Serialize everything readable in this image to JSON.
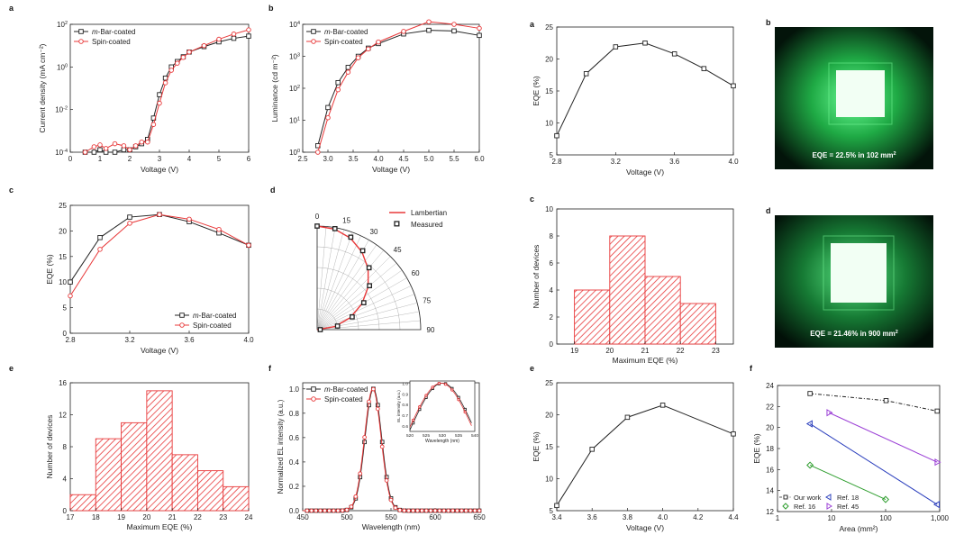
{
  "colors": {
    "black_series": "#222222",
    "red_series": "#e8393a",
    "hatch_red": "#e8393a",
    "bg": "#ffffff",
    "photo_green": "#3fe870",
    "photo_dark": "#0a1a0c",
    "scatter_blue": "#2b3fbd",
    "scatter_green": "#2f9e2f",
    "scatter_purple": "#9b3fd6"
  },
  "chart_data": [
    {
      "id": "panel-a-left",
      "letter": "a",
      "type": "line",
      "xlabel": "Voltage (V)",
      "ylabel": "Current density (mA cm⁻²)",
      "xlim": [
        0,
        6
      ],
      "ylim_log": [
        -4,
        2
      ],
      "y_scale": "log",
      "xticks": [
        "0",
        "1",
        "2",
        "3",
        "4",
        "5",
        "6"
      ],
      "yticks": [
        {
          "v": -4,
          "base": "10",
          "exp": "-4"
        },
        {
          "v": -2,
          "base": "10",
          "exp": "-2"
        },
        {
          "v": 0,
          "base": "10",
          "exp": "0"
        },
        {
          "v": 2,
          "base": "10",
          "exp": "2"
        }
      ],
      "legend": {
        "position": "top-left",
        "entries": [
          "m-Bar-coated",
          "Spin-coated"
        ]
      },
      "series": [
        {
          "name": "m-Bar-coated",
          "color": "black",
          "marker": "square",
          "x": [
            0.5,
            0.8,
            1.0,
            1.2,
            1.5,
            1.8,
            2.0,
            2.2,
            2.4,
            2.6,
            2.8,
            3.0,
            3.2,
            3.4,
            3.6,
            3.8,
            4.0,
            4.5,
            5.0,
            5.5,
            6.0
          ],
          "y": [
            0.0001,
            0.0001,
            0.00013,
            0.0001,
            0.0001,
            0.00013,
            0.00013,
            0.00018,
            0.00025,
            0.0004,
            0.004,
            0.05,
            0.3,
            1.0,
            1.8,
            3.0,
            5.0,
            9.0,
            15.0,
            22.0,
            28.0
          ]
        },
        {
          "name": "Spin-coated",
          "color": "red",
          "marker": "circle",
          "x": [
            0.5,
            0.8,
            1.0,
            1.2,
            1.5,
            1.8,
            2.0,
            2.2,
            2.4,
            2.6,
            2.8,
            3.0,
            3.2,
            3.4,
            3.6,
            3.8,
            4.0,
            4.5,
            5.0,
            5.5,
            6.0
          ],
          "y": [
            0.0001,
            0.00018,
            0.00022,
            0.00015,
            0.00025,
            0.0002,
            0.00013,
            0.0002,
            0.0003,
            0.0003,
            0.002,
            0.02,
            0.18,
            0.7,
            1.5,
            2.8,
            5.0,
            10.0,
            20.0,
            35.0,
            55.0
          ]
        }
      ]
    },
    {
      "id": "panel-b-left",
      "letter": "b",
      "type": "line",
      "xlabel": "Voltage (V)",
      "ylabel": "Luminance (cd m⁻²)",
      "xlim": [
        2.5,
        6.0
      ],
      "ylim_log": [
        0,
        4
      ],
      "y_scale": "log",
      "xticks": [
        "2.5",
        "3.0",
        "3.5",
        "4.0",
        "4.5",
        "5.0",
        "5.5",
        "6.0"
      ],
      "yticks": [
        {
          "v": 0,
          "base": "10",
          "exp": "0"
        },
        {
          "v": 1,
          "base": "10",
          "exp": "1"
        },
        {
          "v": 2,
          "base": "10",
          "exp": "2"
        },
        {
          "v": 3,
          "base": "10",
          "exp": "3"
        },
        {
          "v": 4,
          "base": "10",
          "exp": "4"
        }
      ],
      "legend": {
        "position": "top-left",
        "entries": [
          "m-Bar-coated",
          "Spin-coated"
        ]
      },
      "series": [
        {
          "name": "m-Bar-coated",
          "color": "black",
          "marker": "square",
          "x": [
            2.8,
            3.0,
            3.2,
            3.4,
            3.6,
            3.8,
            4.0,
            4.5,
            5.0,
            5.5,
            6.0
          ],
          "y": [
            1.6,
            25,
            150,
            450,
            1000,
            1800,
            2500,
            5000,
            6500,
            6200,
            4500
          ]
        },
        {
          "name": "Spin-coated",
          "color": "red",
          "marker": "circle",
          "x": [
            2.8,
            3.0,
            3.2,
            3.4,
            3.6,
            3.8,
            4.0,
            4.5,
            5.0,
            5.5,
            6.0
          ],
          "y": [
            1.0,
            12,
            90,
            320,
            900,
            1700,
            2800,
            6000,
            12000,
            10000,
            7500
          ]
        }
      ]
    },
    {
      "id": "panel-c-left",
      "letter": "c",
      "type": "line",
      "xlabel": "Voltage (V)",
      "ylabel": "EQE (%)",
      "xlim": [
        2.8,
        4.0
      ],
      "ylim": [
        0,
        25
      ],
      "xticks": [
        "2.8",
        "3.2",
        "3.6",
        "4.0"
      ],
      "yticks": [
        "0",
        "5",
        "10",
        "15",
        "20",
        "25"
      ],
      "legend": {
        "position": "bottom-right",
        "entries": [
          "m-Bar-coated",
          "Spin-coated"
        ]
      },
      "series": [
        {
          "name": "m-Bar-coated",
          "color": "black",
          "marker": "square",
          "x": [
            2.8,
            3.0,
            3.2,
            3.4,
            3.6,
            3.8,
            4.0
          ],
          "y": [
            10.0,
            18.7,
            22.7,
            23.2,
            21.8,
            19.6,
            17.2
          ]
        },
        {
          "name": "Spin-coated",
          "color": "red",
          "marker": "circle",
          "x": [
            2.8,
            3.0,
            3.2,
            3.4,
            3.6,
            3.8,
            4.0
          ],
          "y": [
            7.3,
            16.4,
            21.5,
            23.2,
            22.3,
            20.3,
            17.2
          ]
        }
      ]
    },
    {
      "id": "panel-d-left",
      "letter": "d",
      "type": "polar",
      "angle_labels": [
        "0",
        "15",
        "30",
        "45",
        "60",
        "75",
        "90"
      ],
      "legend": {
        "position": "top-right",
        "entries": [
          "Lambertian",
          "Measured"
        ]
      },
      "series": [
        {
          "name": "Lambertian",
          "color": "red",
          "angles": [
            0,
            10,
            20,
            30,
            40,
            50,
            60,
            70,
            80,
            90
          ],
          "r": [
            1.0,
            0.985,
            0.94,
            0.866,
            0.766,
            0.643,
            0.5,
            0.342,
            0.174,
            0.0
          ]
        },
        {
          "name": "Measured",
          "color": "black",
          "marker": "square",
          "angles": [
            0,
            10,
            20,
            30,
            40,
            50,
            60,
            70,
            80,
            90
          ],
          "r": [
            1.0,
            0.99,
            0.95,
            0.88,
            0.78,
            0.66,
            0.52,
            0.36,
            0.2,
            0.03
          ]
        }
      ]
    },
    {
      "id": "panel-e-left",
      "letter": "e",
      "type": "bar",
      "xlabel": "Maximum EQE (%)",
      "ylabel": "Number of devices",
      "xlim": [
        17,
        24
      ],
      "ylim": [
        0,
        16
      ],
      "xticks": [
        "17",
        "18",
        "19",
        "20",
        "21",
        "22",
        "23",
        "24"
      ],
      "yticks": [
        "0",
        "4",
        "8",
        "12",
        "16"
      ],
      "bins": [
        [
          17,
          18
        ],
        [
          18,
          19
        ],
        [
          19,
          20
        ],
        [
          20,
          21
        ],
        [
          21,
          22
        ],
        [
          22,
          23
        ],
        [
          23,
          24
        ]
      ],
      "values": [
        2,
        9,
        11,
        15,
        7,
        5,
        3
      ]
    },
    {
      "id": "panel-f-left",
      "letter": "f",
      "type": "line",
      "xlabel": "Wavelength (nm)",
      "ylabel": "Normalized EL intensity (a.u.)",
      "xlim": [
        450,
        650
      ],
      "ylim": [
        0,
        1.05
      ],
      "xticks": [
        "450",
        "500",
        "550",
        "600",
        "650"
      ],
      "yticks": [
        "0.0",
        "0.2",
        "0.4",
        "0.6",
        "0.8",
        "1.0"
      ],
      "legend": {
        "position": "top-left",
        "entries": [
          "m-Bar-coated",
          "Spin-coated"
        ]
      },
      "peak_nm": 530,
      "fwhm_nm": 22,
      "inset": {
        "xlabel": "Wavelength (nm)",
        "ylabel": "EL intensity (a.u.)",
        "xticks": [
          "520",
          "525",
          "530",
          "535",
          "540"
        ],
        "yticks": [
          "0.6",
          "0.7",
          "0.8",
          "0.9",
          "1.0"
        ],
        "xlim": [
          520,
          540
        ],
        "ylim": [
          0.55,
          1.02
        ]
      },
      "series": [
        {
          "name": "m-Bar-coated",
          "color": "black",
          "marker": "square"
        },
        {
          "name": "Spin-coated",
          "color": "red",
          "marker": "circle"
        }
      ]
    },
    {
      "id": "panel-a-right",
      "letter": "a",
      "type": "line",
      "xlabel": "Voltage (V)",
      "ylabel": "EQE (%)",
      "xlim": [
        2.8,
        4.0
      ],
      "ylim": [
        5,
        25
      ],
      "xticks": [
        "2.8",
        "3.2",
        "3.6",
        "4.0"
      ],
      "yticks": [
        "5",
        "10",
        "15",
        "20",
        "25"
      ],
      "series": [
        {
          "name": "",
          "color": "black",
          "marker": "square",
          "x": [
            2.8,
            3.0,
            3.2,
            3.4,
            3.6,
            3.8,
            4.0
          ],
          "y": [
            8.0,
            17.7,
            21.9,
            22.5,
            20.8,
            18.5,
            15.8
          ]
        }
      ]
    },
    {
      "id": "panel-c-right",
      "letter": "c",
      "type": "bar",
      "xlabel": "Maximum EQE (%)",
      "ylabel": "Number of devices",
      "xlim": [
        18.5,
        23.5
      ],
      "ylim": [
        0,
        10
      ],
      "xticks": [
        "19",
        "20",
        "21",
        "22",
        "23"
      ],
      "yticks": [
        "0",
        "2",
        "4",
        "6",
        "8",
        "10"
      ],
      "bins": [
        [
          19,
          20
        ],
        [
          20,
          21
        ],
        [
          21,
          22
        ],
        [
          22,
          23
        ]
      ],
      "values": [
        4,
        8,
        5,
        3
      ]
    },
    {
      "id": "panel-e-right",
      "letter": "e",
      "type": "line",
      "xlabel": "Voltage (V)",
      "ylabel": "EQE (%)",
      "xlim": [
        3.4,
        4.4
      ],
      "ylim": [
        5,
        25
      ],
      "xticks": [
        "3.4",
        "3.6",
        "3.8",
        "4.0",
        "4.2",
        "4.4"
      ],
      "yticks": [
        "5",
        "10",
        "15",
        "20",
        "25"
      ],
      "series": [
        {
          "name": "",
          "color": "black",
          "marker": "square",
          "x": [
            3.4,
            3.6,
            3.8,
            4.0,
            4.4
          ],
          "y": [
            5.8,
            14.6,
            19.6,
            21.5,
            17.0
          ]
        }
      ]
    },
    {
      "id": "panel-f-right",
      "letter": "f",
      "type": "scatter",
      "xlabel": "Area (mm²)",
      "ylabel": "EQE (%)",
      "x_scale": "log",
      "xlim_log": [
        0,
        3
      ],
      "ylim": [
        11.5,
        24
      ],
      "xticks": [
        "1",
        "10",
        "100",
        "1,000"
      ],
      "yticks": [
        "12",
        "14",
        "16",
        "18",
        "20",
        "22",
        "24"
      ],
      "legend": {
        "position": "bottom-left",
        "entries": [
          "Our work",
          "Ref. 18",
          "Ref. 16",
          "Ref. 45"
        ]
      },
      "series": [
        {
          "name": "Our work",
          "color": "black",
          "marker": "square-open",
          "line": "dash-dot",
          "x": [
            4,
            102,
            900
          ],
          "y": [
            23.2,
            22.5,
            21.46
          ]
        },
        {
          "name": "Ref. 18",
          "color": "blue",
          "marker": "triangle-left",
          "x": [
            4,
            900
          ],
          "y": [
            20.2,
            12.2
          ]
        },
        {
          "name": "Ref. 16",
          "color": "green",
          "marker": "diamond",
          "x": [
            4,
            100
          ],
          "y": [
            16.1,
            12.7
          ]
        },
        {
          "name": "Ref. 45",
          "color": "purple",
          "marker": "triangle-right",
          "x": [
            9,
            900
          ],
          "y": [
            21.3,
            16.4
          ]
        }
      ]
    }
  ],
  "photos": [
    {
      "id": "photo-b",
      "letter": "b",
      "caption": "EQE = 22.5% in 102 mm²"
    },
    {
      "id": "photo-d",
      "letter": "d",
      "caption": "EQE = 21.46% in 900 mm²"
    }
  ]
}
